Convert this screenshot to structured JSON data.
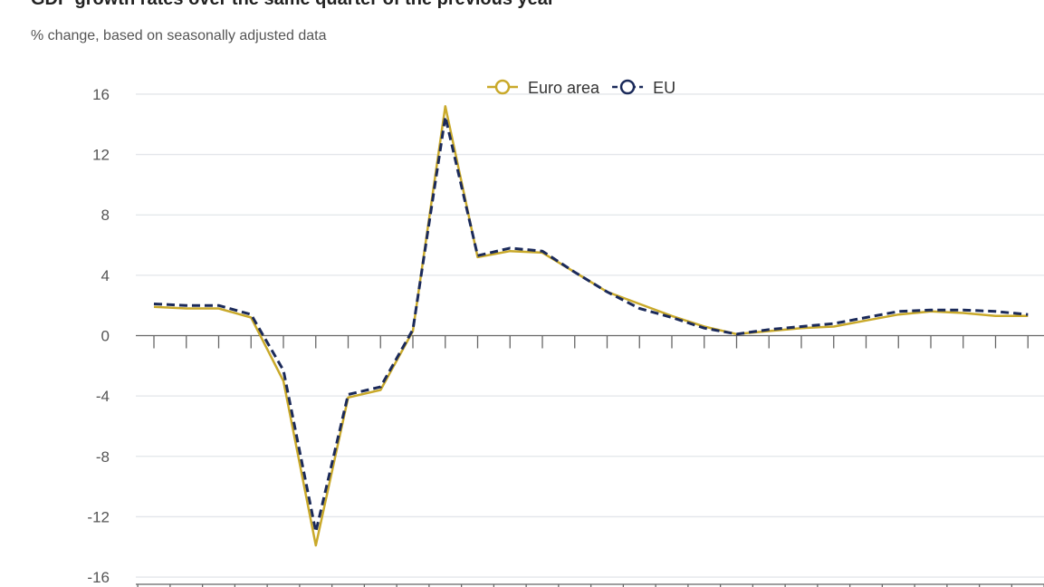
{
  "chart_data": {
    "type": "line",
    "title": "GDP growth rates over the same quarter of the previous year",
    "subtitle": "% change, based on seasonally adjusted data",
    "xlabel": "",
    "ylabel": "",
    "ylim": [
      -16,
      16
    ],
    "yticks": [
      "16",
      "12",
      "8",
      "4",
      "0",
      "-4",
      "-8",
      "-12",
      "-16"
    ],
    "ytick_values": [
      16,
      12,
      8,
      4,
      0,
      -4,
      -8,
      -12,
      -16
    ],
    "grid": true,
    "legend_position": "top-center",
    "series": [
      {
        "name": "Euro area",
        "color": "#c9a92a",
        "dash": false,
        "values": [
          1.9,
          1.8,
          1.8,
          1.2,
          -3.0,
          -13.9,
          -4.1,
          -3.6,
          0.3,
          15.2,
          5.2,
          5.6,
          5.5,
          4.2,
          2.9,
          2.1,
          1.3,
          0.6,
          0.1,
          0.3,
          0.5,
          0.6,
          1.0,
          1.4,
          1.6,
          1.5,
          1.3,
          1.3
        ]
      },
      {
        "name": "EU",
        "color": "#1b2a5a",
        "dash": true,
        "values": [
          2.1,
          2.0,
          2.0,
          1.4,
          -2.3,
          -13.0,
          -3.9,
          -3.4,
          0.4,
          14.5,
          5.3,
          5.8,
          5.6,
          4.2,
          2.9,
          1.8,
          1.2,
          0.5,
          0.1,
          0.4,
          0.6,
          0.8,
          1.2,
          1.6,
          1.7,
          1.7,
          1.6,
          1.4
        ]
      }
    ]
  }
}
